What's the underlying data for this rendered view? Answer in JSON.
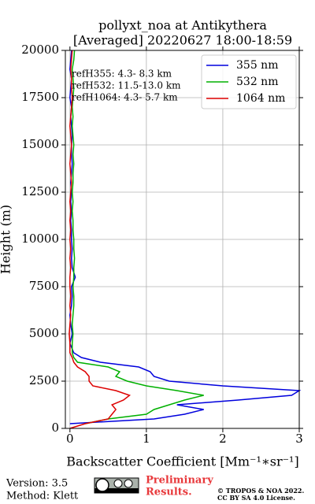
{
  "chart_data": {
    "type": "line",
    "title": [
      "pollyxt_noa at Antikythera",
      "[Averaged] 20220627 18:00-18:59"
    ],
    "xlabel": "Backscatter Coefficient [Mm⁻¹∗sr⁻¹]",
    "ylabel": "Height (m)",
    "annotations": [
      "refH355:  4.3- 8.3 km",
      "refH532: 11.5-13.0 km",
      "refH1064:  4.3- 5.7 km"
    ],
    "xlim": [
      -0.06,
      3.0
    ],
    "xticks": [
      0,
      1,
      2,
      3
    ],
    "ylim": [
      0,
      20000
    ],
    "yticks": [
      0,
      2500,
      5000,
      7500,
      10000,
      12500,
      15000,
      17500,
      20000
    ],
    "grid": true,
    "legend": "upper right",
    "heights": [
      0,
      250,
      500,
      750,
      1000,
      1250,
      1500,
      1750,
      2000,
      2250,
      2500,
      2750,
      3000,
      3250,
      3500,
      3750,
      4000,
      4500,
      5000,
      5500,
      6000,
      6500,
      7000,
      7500,
      8000,
      8500,
      9000,
      9500,
      10000,
      10500,
      11000,
      11500,
      12000,
      12500,
      13000,
      13500,
      14000,
      14500,
      15000,
      15500,
      16000,
      16500,
      17000,
      17500,
      18000,
      18500,
      19000,
      19500,
      20000
    ],
    "series": [
      {
        "name": "355 nm",
        "color": "#0000dd",
        "values": [
          null,
          0.0,
          1.1,
          1.5,
          1.75,
          1.4,
          2.2,
          2.9,
          3.0,
          2.0,
          1.3,
          1.1,
          1.05,
          0.9,
          0.4,
          0.15,
          0.05,
          0.0,
          0.03,
          0.01,
          0.0,
          0.02,
          0.03,
          0.02,
          0.07,
          0.03,
          0.02,
          0.03,
          0.02,
          0.02,
          0.01,
          0.02,
          0.01,
          0.02,
          0.01,
          0.02,
          0.03,
          0.02,
          0.02,
          0.03,
          0.02,
          0.01,
          0.02,
          0.0,
          0.01,
          0.02,
          0.0,
          0.01,
          0.02
        ]
      },
      {
        "name": "532 nm",
        "color": "#00b000",
        "values": [
          null,
          0.2,
          0.5,
          1.0,
          1.1,
          1.3,
          1.5,
          1.75,
          1.4,
          1.0,
          0.75,
          0.6,
          0.65,
          0.5,
          0.1,
          0.05,
          0.03,
          0.03,
          0.04,
          0.03,
          0.04,
          0.05,
          0.05,
          0.04,
          0.05,
          0.05,
          0.06,
          0.05,
          0.05,
          0.04,
          0.04,
          0.03,
          0.04,
          0.03,
          0.04,
          0.04,
          0.05,
          0.04,
          0.05,
          0.04,
          0.03,
          0.04,
          0.03,
          0.04,
          0.05,
          0.04,
          0.03,
          0.05,
          0.06
        ]
      },
      {
        "name": "1064 nm",
        "color": "#dd0000",
        "values": [
          0.0,
          0.2,
          0.5,
          0.55,
          0.6,
          0.55,
          0.7,
          0.78,
          0.6,
          0.3,
          0.25,
          0.25,
          0.2,
          0.1,
          0.05,
          0.03,
          0.0,
          0.0,
          -0.01,
          0.0,
          0.01,
          0.0,
          0.01,
          0.0,
          0.0,
          0.01,
          0.0,
          0.01,
          0.0,
          0.01,
          0.0,
          0.01,
          0.0,
          0.01,
          0.02,
          0.01,
          0.0,
          0.01,
          0.02,
          0.01,
          0.0,
          0.01,
          0.02,
          0.03,
          0.02,
          0.02,
          0.01,
          0.02,
          0.03
        ]
      }
    ]
  },
  "footer": {
    "version": "Version: 3.5",
    "method": "Method: Klett",
    "preliminary": [
      "Preliminary",
      "Results."
    ],
    "copyright": [
      "© TROPOS & NOA 2022.",
      "CC BY SA 4.0 License."
    ]
  }
}
